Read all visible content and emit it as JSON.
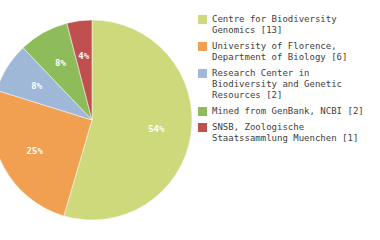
{
  "chart_data": {
    "type": "pie",
    "categories": [
      "Centre for Biodiversity\nGenomics [13]",
      "University of Florence,\nDepartment of Biology [6]",
      "Research Center in\nBiodiversity and Genetic\nResources [2]",
      "Mined from GenBank, NCBI [2]",
      "SNSB, Zoologische\nStaatssammlung Muenchen [1]"
    ],
    "values": [
      54,
      25,
      8,
      8,
      4
    ],
    "value_labels": [
      "54%",
      "25%",
      "8%",
      "8%",
      "4%"
    ],
    "colors": [
      "#cdd97a",
      "#f0a050",
      "#a0b8d8",
      "#8fbc5a",
      "#c0504d"
    ],
    "data_labels": true,
    "legend": "right"
  }
}
